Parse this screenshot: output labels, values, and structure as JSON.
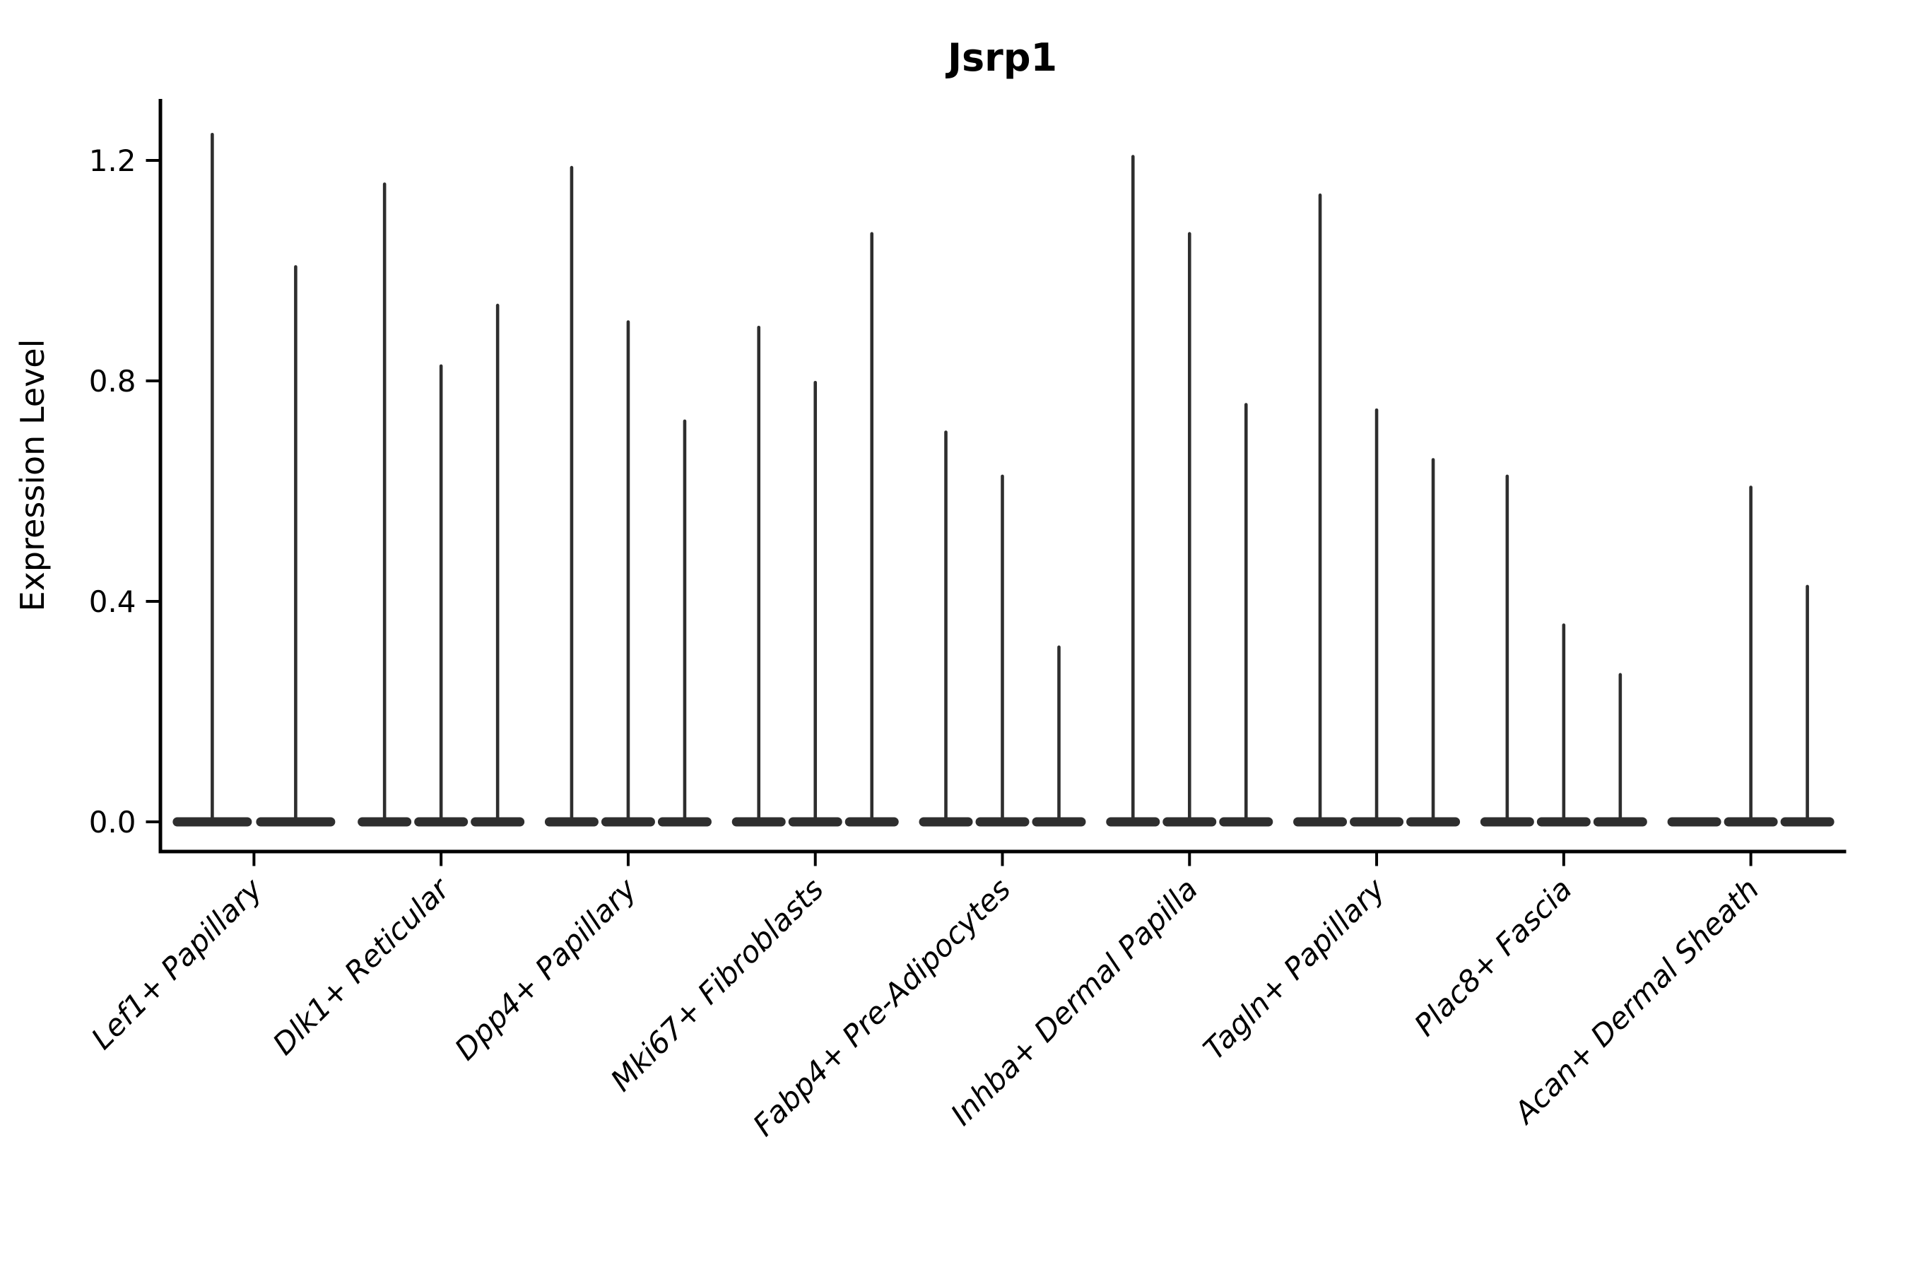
{
  "figure": {
    "background": "#ffffff"
  },
  "chart_data": {
    "type": "violin",
    "title": "Jsrp1",
    "ylabel": "Expression Level",
    "xlabel": "",
    "legend_position": "none",
    "grid": false,
    "ylim": [
      -0.054,
      1.312
    ],
    "violin_color": "#2e2e2e",
    "axis_color": "#000000",
    "y_axis": {
      "ticks": [
        {
          "label": "0.0",
          "value": 0.0
        },
        {
          "label": "0.4",
          "value": 0.4
        },
        {
          "label": "0.8",
          "value": 0.8
        },
        {
          "label": "1.2",
          "value": 1.2
        }
      ]
    },
    "x_axis": {
      "tick_label_rotation_deg": -45,
      "tick_label_style": "italic"
    },
    "categories": [
      {
        "label": "Lef1+ Papillary",
        "peaks": [
          1.25,
          1.01
        ]
      },
      {
        "label": "Dlk1+ Reticular",
        "peaks": [
          1.16,
          0.83,
          0.94
        ]
      },
      {
        "label": "Dpp4+ Papillary",
        "peaks": [
          1.19,
          0.91,
          0.73
        ]
      },
      {
        "label": "Mki67+ Fibroblasts",
        "peaks": [
          0.9,
          0.8,
          1.07
        ]
      },
      {
        "label": "Fabp4+ Pre-Adipocytes",
        "peaks": [
          0.71,
          0.63,
          0.32
        ]
      },
      {
        "label": "Inhba+ Dermal Papilla",
        "peaks": [
          1.21,
          1.07,
          0.76
        ]
      },
      {
        "label": "Tagln+ Papillary",
        "peaks": [
          1.14,
          0.75,
          0.66
        ]
      },
      {
        "label": "Plac8+ Fascia",
        "peaks": [
          0.63,
          0.36,
          0.27
        ]
      },
      {
        "label": "Acan+ Dermal Sheath",
        "peaks": [
          0.0,
          0.61,
          0.43
        ]
      }
    ]
  }
}
